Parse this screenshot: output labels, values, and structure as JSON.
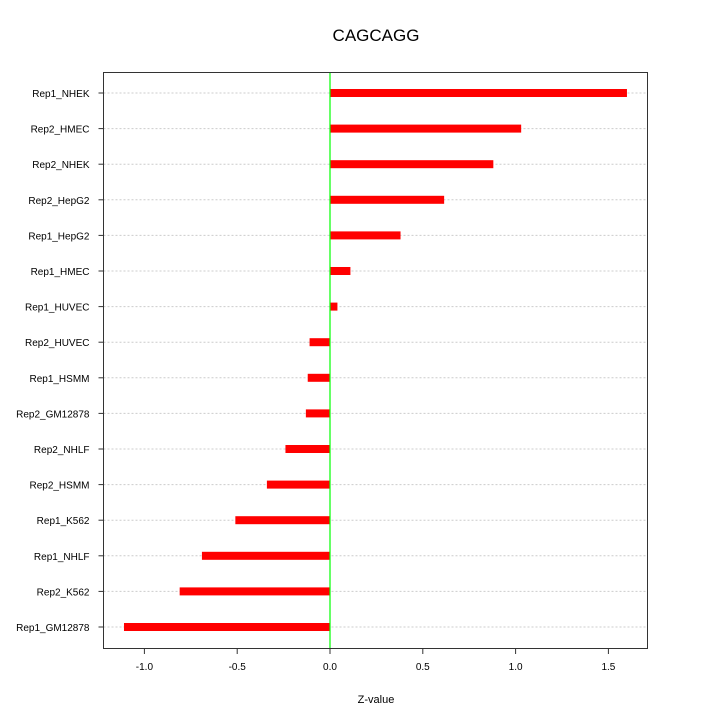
{
  "chart_data": {
    "type": "bar",
    "orientation": "horizontal",
    "title": "CAGCAGG",
    "xlabel": "Z-value",
    "ylabel": "",
    "xlim": [
      -1.21,
      1.73
    ],
    "xticks": [
      -1.0,
      -0.5,
      0.0,
      0.5,
      1.0,
      1.5
    ],
    "xtick_labels": [
      "-1.0",
      "-0.5",
      "0.0",
      "0.5",
      "1.0",
      "1.5"
    ],
    "grid": true,
    "categories": [
      "Rep1_NHEK",
      "Rep2_HMEC",
      "Rep2_NHEK",
      "Rep2_HepG2",
      "Rep1_HepG2",
      "Rep1_HMEC",
      "Rep1_HUVEC",
      "Rep2_HUVEC",
      "Rep1_HSMM",
      "Rep2_GM12878",
      "Rep2_NHLF",
      "Rep2_HSMM",
      "Rep1_K562",
      "Rep1_NHLF",
      "Rep2_K562",
      "Rep1_GM12878"
    ],
    "values": [
      1.6,
      1.03,
      0.88,
      0.615,
      0.38,
      0.11,
      0.04,
      -0.11,
      -0.12,
      -0.13,
      -0.24,
      -0.34,
      -0.51,
      -0.69,
      -0.81,
      -1.11
    ],
    "bar_color": "#ff0000",
    "zero_line_color": "#00ff00"
  }
}
